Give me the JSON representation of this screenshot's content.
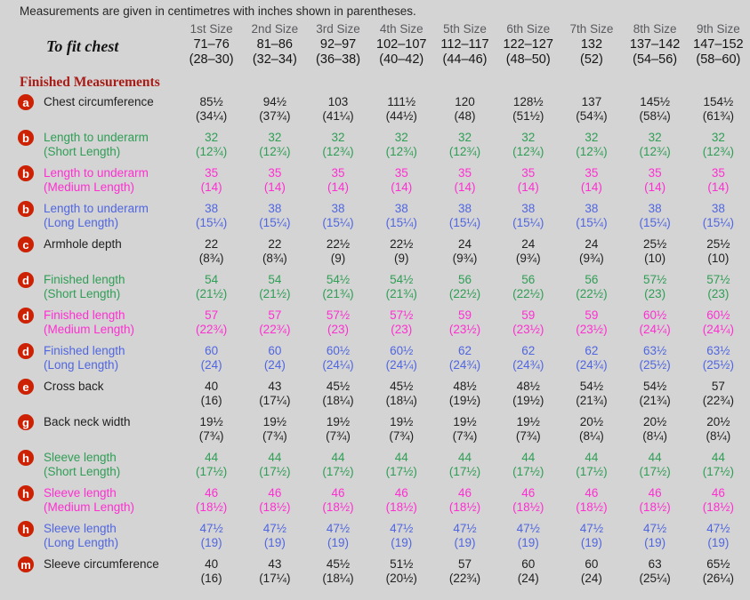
{
  "note": "Measurements are given in centimetres with inches shown in parentheses.",
  "colors": {
    "background": "#d4d4d4",
    "black": "#1f1f1f",
    "header_gray": "#595a5e",
    "heading_red": "#a81c17",
    "badge_red": "#cd2104",
    "green": "#2f9e55",
    "magenta": "#ff2ed2",
    "blue": "#5066e0"
  },
  "size_headers": [
    "1st Size",
    "2nd Size",
    "3rd Size",
    "4th Size",
    "5th Size",
    "6th Size",
    "7th Size",
    "8th Size",
    "9th Size"
  ],
  "to_fit_chest": {
    "label": "To fit chest",
    "cm": [
      "71–76",
      "81–86",
      "92–97",
      "102–107",
      "112–117",
      "122–127",
      "132",
      "137–142",
      "147–152"
    ],
    "in": [
      "(28–30)",
      "(32–34)",
      "(36–38)",
      "(40–42)",
      "(44–46)",
      "(48–50)",
      "(52)",
      "(54–56)",
      "(58–60)"
    ]
  },
  "section_heading": "Finished Measurements",
  "rows": [
    {
      "badge": "a",
      "label": "Chest circumference",
      "sublabel": "",
      "color": "black",
      "cm": [
        "85½",
        "94½",
        "103",
        "111½",
        "120",
        "128½",
        "137",
        "145½",
        "154½"
      ],
      "in": [
        "(34¼)",
        "(37¾)",
        "(41¼)",
        "(44½)",
        "(48)",
        "(51½)",
        "(54¾)",
        "(58¼)",
        "(61¾)"
      ]
    },
    {
      "badge": "b",
      "label": "Length to underarm",
      "sublabel": "(Short Length)",
      "color": "green",
      "cm": [
        "32",
        "32",
        "32",
        "32",
        "32",
        "32",
        "32",
        "32",
        "32"
      ],
      "in": [
        "(12¾)",
        "(12¾)",
        "(12¾)",
        "(12¾)",
        "(12¾)",
        "(12¾)",
        "(12¾)",
        "(12¾)",
        "(12¾)"
      ]
    },
    {
      "badge": "b",
      "label": "Length to underarm",
      "sublabel": "(Medium Length)",
      "color": "magenta",
      "cm": [
        "35",
        "35",
        "35",
        "35",
        "35",
        "35",
        "35",
        "35",
        "35"
      ],
      "in": [
        "(14)",
        "(14)",
        "(14)",
        "(14)",
        "(14)",
        "(14)",
        "(14)",
        "(14)",
        "(14)"
      ]
    },
    {
      "badge": "b",
      "label": "Length to underarm",
      "sublabel": "(Long Length)",
      "color": "blue",
      "cm": [
        "38",
        "38",
        "38",
        "38",
        "38",
        "38",
        "38",
        "38",
        "38"
      ],
      "in": [
        "(15¼)",
        "(15¼)",
        "(15¼)",
        "(15¼)",
        "(15¼)",
        "(15¼)",
        "(15¼)",
        "(15¼)",
        "(15¼)"
      ]
    },
    {
      "badge": "c",
      "label": "Armhole depth",
      "sublabel": "",
      "color": "black",
      "cm": [
        "22",
        "22",
        "22½",
        "22½",
        "24",
        "24",
        "24",
        "25½",
        "25½"
      ],
      "in": [
        "(8¾)",
        "(8¾)",
        "(9)",
        "(9)",
        "(9¾)",
        "(9¾)",
        "(9¾)",
        "(10)",
        "(10)"
      ]
    },
    {
      "badge": "d",
      "label": "Finished length",
      "sublabel": "(Short Length)",
      "color": "green",
      "cm": [
        "54",
        "54",
        "54½",
        "54½",
        "56",
        "56",
        "56",
        "57½",
        "57½"
      ],
      "in": [
        "(21½)",
        "(21½)",
        "(21¾)",
        "(21¾)",
        "(22½)",
        "(22½)",
        "(22½)",
        "(23)",
        "(23)"
      ]
    },
    {
      "badge": "d",
      "label": "Finished length",
      "sublabel": "(Medium Length)",
      "color": "magenta",
      "cm": [
        "57",
        "57",
        "57½",
        "57½",
        "59",
        "59",
        "59",
        "60½",
        "60½"
      ],
      "in": [
        "(22¾)",
        "(22¾)",
        "(23)",
        "(23)",
        "(23½)",
        "(23½)",
        "(23½)",
        "(24¼)",
        "(24¼)"
      ]
    },
    {
      "badge": "d",
      "label": "Finished length",
      "sublabel": "(Long Length)",
      "color": "blue",
      "cm": [
        "60",
        "60",
        "60½",
        "60½",
        "62",
        "62",
        "62",
        "63½",
        "63½"
      ],
      "in": [
        "(24)",
        "(24)",
        "(24¼)",
        "(24¼)",
        "(24¾)",
        "(24¾)",
        "(24¾)",
        "(25½)",
        "(25½)"
      ]
    },
    {
      "badge": "e",
      "label": "Cross back",
      "sublabel": "",
      "color": "black",
      "cm": [
        "40",
        "43",
        "45½",
        "45½",
        "48½",
        "48½",
        "54½",
        "54½",
        "57"
      ],
      "in": [
        "(16)",
        "(17¼)",
        "(18¼)",
        "(18¼)",
        "(19½)",
        "(19½)",
        "(21¾)",
        "(21¾)",
        "(22¾)"
      ]
    },
    {
      "badge": "g",
      "label": "Back neck width",
      "sublabel": "",
      "color": "black",
      "cm": [
        "19½",
        "19½",
        "19½",
        "19½",
        "19½",
        "19½",
        "20½",
        "20½",
        "20½"
      ],
      "in": [
        "(7¾)",
        "(7¾)",
        "(7¾)",
        "(7¾)",
        "(7¾)",
        "(7¾)",
        "(8¼)",
        "(8¼)",
        "(8¼)"
      ]
    },
    {
      "badge": "h",
      "label": "Sleeve length",
      "sublabel": "(Short Length)",
      "color": "green",
      "cm": [
        "44",
        "44",
        "44",
        "44",
        "44",
        "44",
        "44",
        "44",
        "44"
      ],
      "in": [
        "(17½)",
        "(17½)",
        "(17½)",
        "(17½)",
        "(17½)",
        "(17½)",
        "(17½)",
        "(17½)",
        "(17½)"
      ]
    },
    {
      "badge": "h",
      "label": "Sleeve length",
      "sublabel": "(Medium Length)",
      "color": "magenta",
      "cm": [
        "46",
        "46",
        "46",
        "46",
        "46",
        "46",
        "46",
        "46",
        "46"
      ],
      "in": [
        "(18½)",
        "(18½)",
        "(18½)",
        "(18½)",
        "(18½)",
        "(18½)",
        "(18½)",
        "(18½)",
        "(18½)"
      ]
    },
    {
      "badge": "h",
      "label": "Sleeve length",
      "sublabel": "(Long Length)",
      "color": "blue",
      "cm": [
        "47½",
        "47½",
        "47½",
        "47½",
        "47½",
        "47½",
        "47½",
        "47½",
        "47½"
      ],
      "in": [
        "(19)",
        "(19)",
        "(19)",
        "(19)",
        "(19)",
        "(19)",
        "(19)",
        "(19)",
        "(19)"
      ]
    },
    {
      "badge": "m",
      "label": "Sleeve circumference",
      "sublabel": "",
      "color": "black",
      "cm": [
        "40",
        "43",
        "45½",
        "51½",
        "57",
        "60",
        "60",
        "63",
        "65½"
      ],
      "in": [
        "(16)",
        "(17¼)",
        "(18¼)",
        "(20½)",
        "(22¾)",
        "(24)",
        "(24)",
        "(25¼)",
        "(26¼)"
      ]
    }
  ]
}
